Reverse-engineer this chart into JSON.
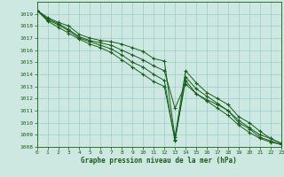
{
  "title": "Graphe pression niveau de la mer (hPa)",
  "bg_color": "#cce8e0",
  "grid_color": "#99cccc",
  "line_color": "#1a5c1a",
  "xlim": [
    0,
    23
  ],
  "ylim": [
    1008,
    1020
  ],
  "xticks": [
    0,
    1,
    2,
    3,
    4,
    5,
    6,
    7,
    8,
    9,
    10,
    11,
    12,
    13,
    14,
    15,
    16,
    17,
    18,
    19,
    20,
    21,
    22,
    23
  ],
  "yticks": [
    1008,
    1009,
    1010,
    1011,
    1012,
    1013,
    1014,
    1015,
    1016,
    1017,
    1018,
    1019
  ],
  "series": [
    [
      1019.3,
      1018.7,
      1018.3,
      1018.0,
      1017.3,
      1017.0,
      1016.8,
      1016.7,
      1016.5,
      1016.2,
      1015.9,
      1015.3,
      1015.1,
      1008.8,
      1014.3,
      1013.3,
      1012.5,
      1012.0,
      1011.5,
      1010.5,
      1010.0,
      1009.3,
      1008.7,
      1008.3
    ],
    [
      1019.3,
      1018.6,
      1018.2,
      1017.7,
      1017.1,
      1016.8,
      1016.6,
      1016.4,
      1016.0,
      1015.6,
      1015.2,
      1014.7,
      1014.3,
      1011.2,
      1013.2,
      1012.4,
      1011.9,
      1011.5,
      1011.0,
      1010.2,
      1009.6,
      1009.0,
      1008.7,
      1008.3
    ],
    [
      1019.3,
      1018.5,
      1018.1,
      1017.6,
      1017.0,
      1016.7,
      1016.4,
      1016.1,
      1015.6,
      1015.0,
      1014.6,
      1014.0,
      1013.5,
      1008.5,
      1013.8,
      1012.8,
      1012.2,
      1011.6,
      1011.0,
      1010.0,
      1009.5,
      1008.8,
      1008.5,
      1008.2
    ],
    [
      1019.3,
      1018.4,
      1017.9,
      1017.4,
      1016.9,
      1016.5,
      1016.2,
      1015.8,
      1015.2,
      1014.6,
      1014.0,
      1013.4,
      1013.0,
      1008.6,
      1013.5,
      1012.4,
      1011.8,
      1011.2,
      1010.6,
      1009.8,
      1009.2,
      1008.7,
      1008.4,
      1008.2
    ]
  ]
}
